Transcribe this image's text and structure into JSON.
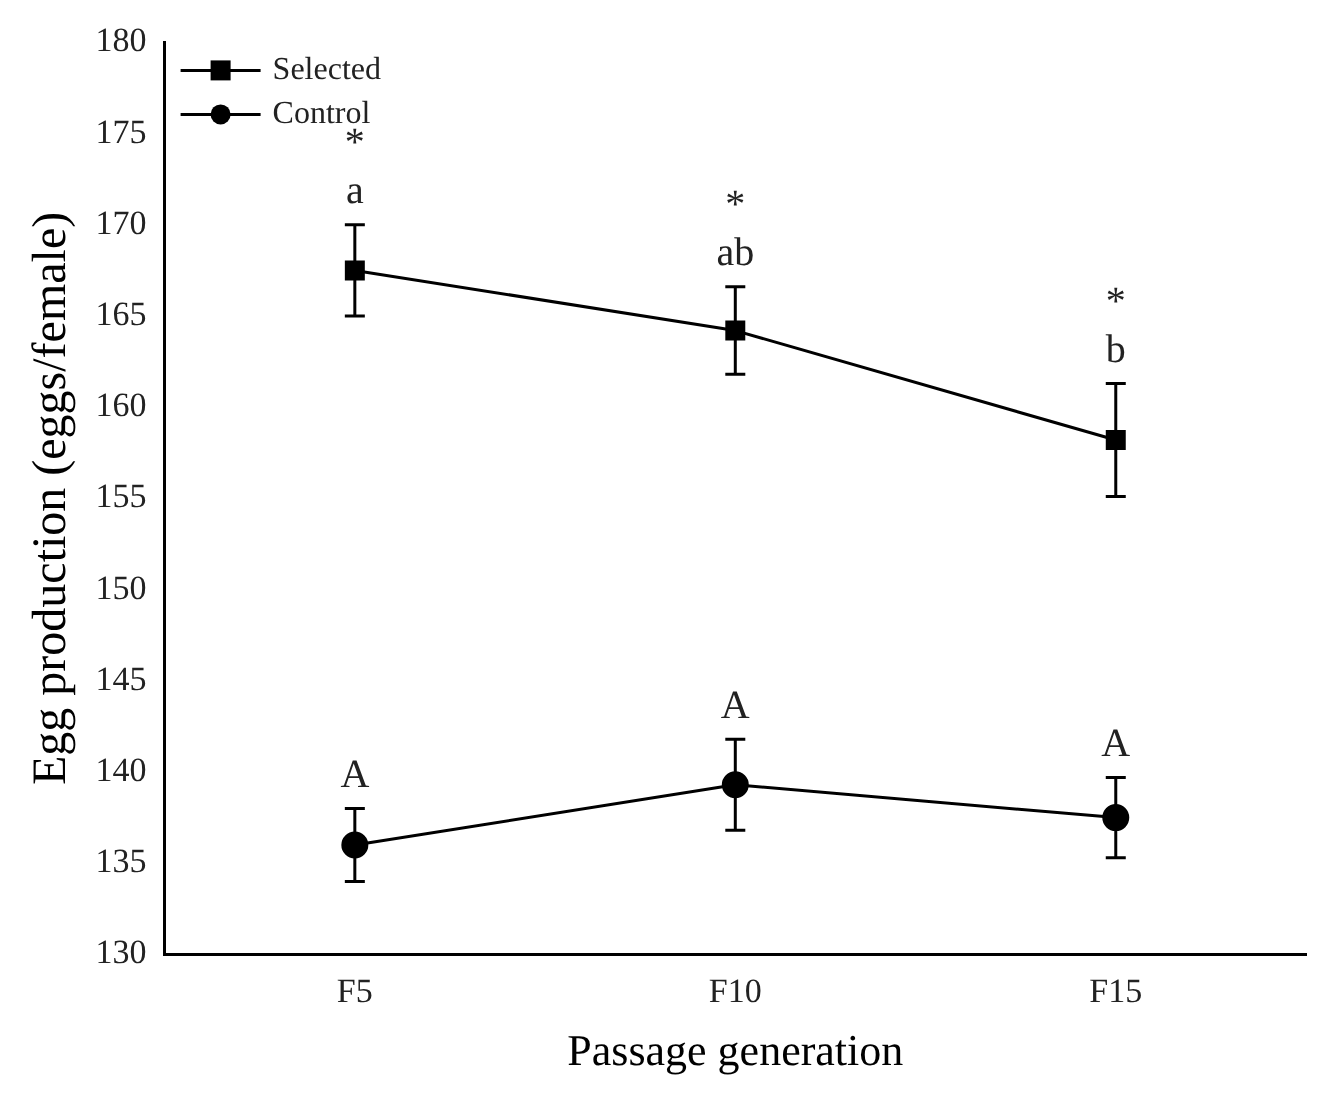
{
  "chart_data": {
    "type": "line",
    "xlabel": "Passage generation",
    "ylabel": "Egg production (eggs/female)",
    "categories": [
      "F5",
      "F10",
      "F15"
    ],
    "series": [
      {
        "name": "Selected",
        "color": "#000000",
        "marker": "square",
        "values": [
          167.5,
          164.2,
          158.2
        ],
        "errors": [
          2.5,
          2.4,
          3.1
        ]
      },
      {
        "name": "Control",
        "color": "#000000",
        "marker": "circle",
        "values": [
          136.0,
          139.3,
          137.5
        ],
        "errors": [
          2.0,
          2.5,
          2.2
        ]
      }
    ],
    "ylim": [
      130,
      180
    ],
    "yticks": [
      130,
      135,
      140,
      145,
      150,
      155,
      160,
      165,
      170,
      175,
      180
    ],
    "grid": false,
    "legend": "top left",
    "line_style": "solid",
    "annotations": [
      {
        "text": "*",
        "x": "F5",
        "y": 167.5
      },
      {
        "text": "a",
        "x": "F5",
        "y": 167.5
      },
      {
        "text": "*",
        "x": "F10",
        "y": 164.2
      },
      {
        "text": "ab",
        "x": "F10",
        "y": 164.2
      },
      {
        "text": "*",
        "x": "F15",
        "y": 158.2
      },
      {
        "text": "b",
        "x": "F15",
        "y": 158.2
      },
      {
        "text": "A",
        "x": "F5",
        "y": 136.0
      },
      {
        "text": "A",
        "x": "F10",
        "y": 139.3
      },
      {
        "text": "A",
        "x": "F15",
        "y": 137.5
      }
    ]
  }
}
